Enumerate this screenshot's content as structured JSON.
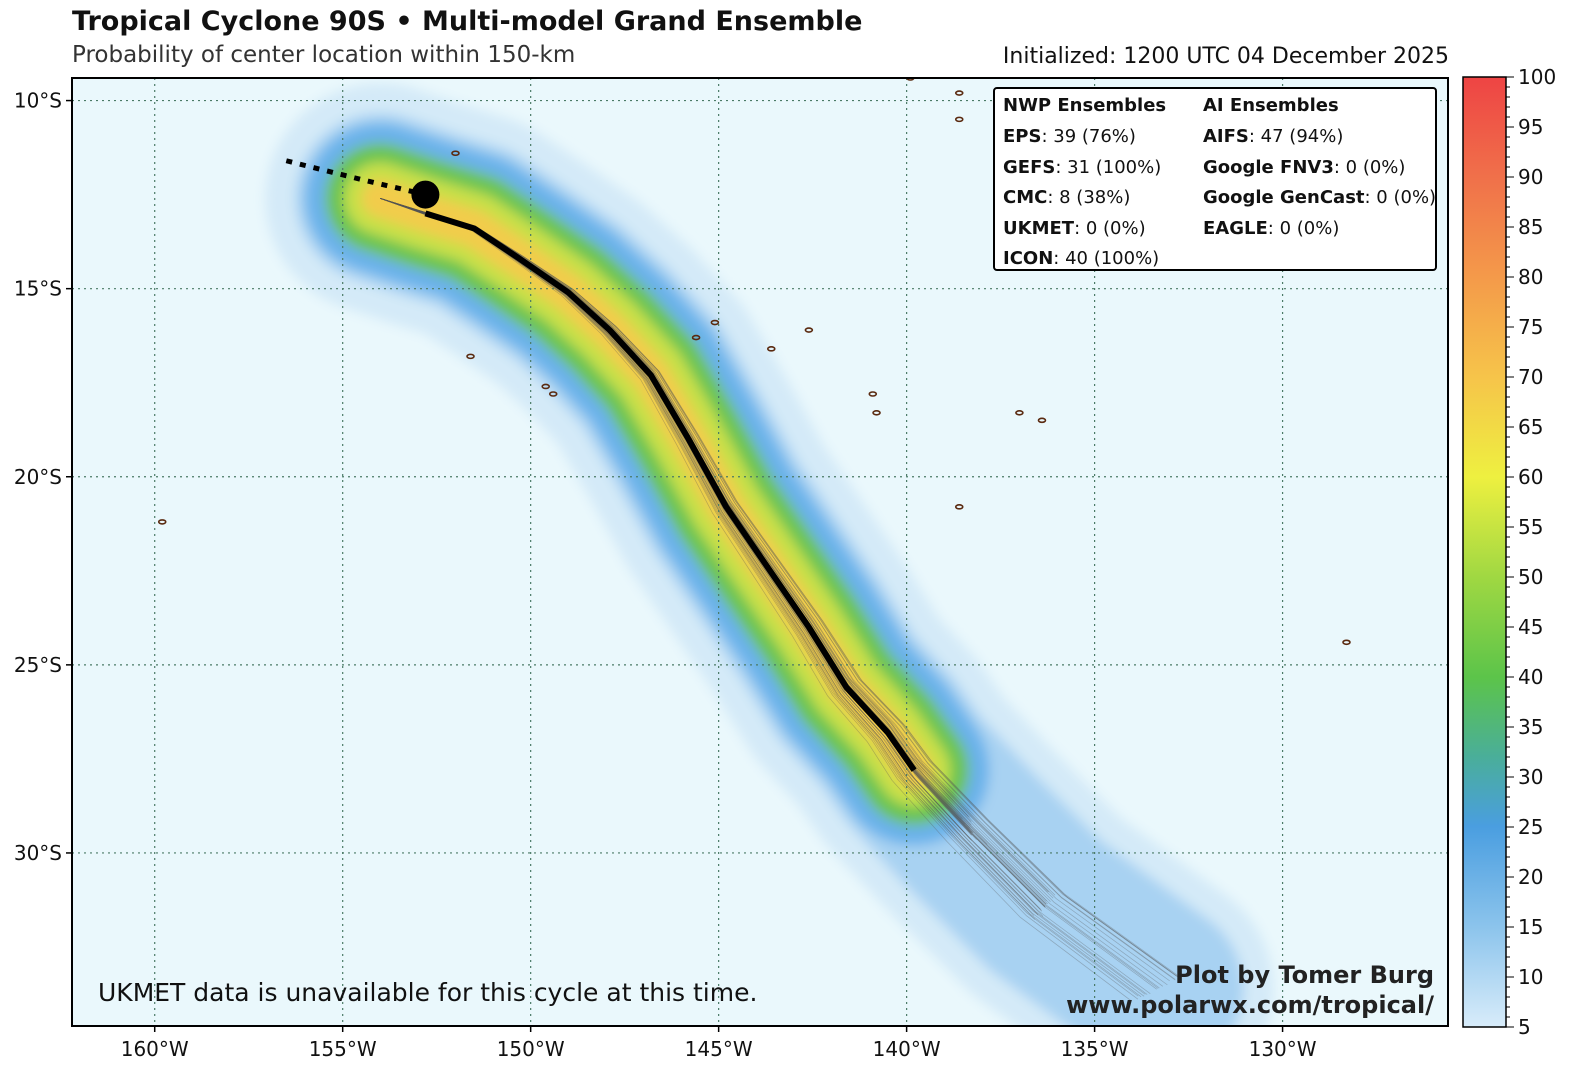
{
  "header": {
    "title": "Tropical Cyclone 90S • Multi-model Grand Ensemble",
    "subtitle": "Probability of center location within 150-km",
    "initialized": "Initialized: 1200 UTC 04 December 2025"
  },
  "legend": {
    "nwp_title": "NWP Ensembles",
    "ai_title": "AI Ensembles",
    "nwp": [
      {
        "model": "EPS",
        "value": ": 39 (76%)"
      },
      {
        "model": "GEFS",
        "value": ": 31 (100%)"
      },
      {
        "model": "CMC",
        "value": ": 8 (38%)"
      },
      {
        "model": "UKMET",
        "value": ": 0 (0%)"
      },
      {
        "model": "ICON",
        "value": ": 40 (100%)"
      }
    ],
    "ai": [
      {
        "model": "AIFS",
        "value": ": 47 (94%)"
      },
      {
        "model": "Google FNV3",
        "value": ": 0 (0%)"
      },
      {
        "model": "Google GenCast",
        "value": ": 0 (0%)"
      },
      {
        "model": "EAGLE",
        "value": ": 0 (0%)"
      }
    ]
  },
  "note": "UKMET data is unavailable for this cycle at this time.",
  "credit": {
    "line1": "Plot by Tomer Burg",
    "line2": "www.polarwx.com/tropical/"
  },
  "map": {
    "lat_labels": [
      "10°S",
      "15°S",
      "20°S",
      "25°S",
      "30°S"
    ],
    "lon_labels": [
      "160°W",
      "155°W",
      "150°W",
      "145°W",
      "140°W",
      "135°W",
      "130°W"
    ],
    "lat_range": [
      -34.6,
      -9.4
    ],
    "lon_range": [
      -162.2,
      -125.6
    ],
    "lat_ticks": [
      -10,
      -15,
      -20,
      -25,
      -30
    ],
    "lon_ticks": [
      -160,
      -155,
      -150,
      -145,
      -140,
      -135,
      -130
    ],
    "ocean_color": "#eaf8fc",
    "gridline_color": "#4a7a66",
    "coast_color": "#5a2a10",
    "current_position": {
      "lon": -152.8,
      "lat": -12.5
    },
    "past_track": [
      {
        "lon": -156.5,
        "lat": -11.6
      },
      {
        "lon": -154.5,
        "lat": -12.1
      },
      {
        "lon": -152.8,
        "lat": -12.5
      }
    ],
    "mean_track": [
      {
        "lon": -152.8,
        "lat": -13.0
      },
      {
        "lon": -151.5,
        "lat": -13.4
      },
      {
        "lon": -150.3,
        "lat": -14.2
      },
      {
        "lon": -149.0,
        "lat": -15.1
      },
      {
        "lon": -147.9,
        "lat": -16.1
      },
      {
        "lon": -146.8,
        "lat": -17.3
      },
      {
        "lon": -145.8,
        "lat": -19.0
      },
      {
        "lon": -144.8,
        "lat": -20.8
      },
      {
        "lon": -143.7,
        "lat": -22.4
      },
      {
        "lon": -142.6,
        "lat": -24.0
      },
      {
        "lon": -141.6,
        "lat": -25.6
      },
      {
        "lon": -140.5,
        "lat": -26.8
      },
      {
        "lon": -139.8,
        "lat": -27.8
      }
    ],
    "islands": [
      {
        "lon": -151.6,
        "lat": -16.8
      },
      {
        "lon": -149.6,
        "lat": -17.6
      },
      {
        "lon": -149.4,
        "lat": -17.8
      },
      {
        "lon": -145.6,
        "lat": -16.3
      },
      {
        "lon": -145.1,
        "lat": -15.9
      },
      {
        "lon": -143.6,
        "lat": -16.6
      },
      {
        "lon": -142.6,
        "lat": -16.1
      },
      {
        "lon": -140.9,
        "lat": -17.8
      },
      {
        "lon": -140.8,
        "lat": -18.3
      },
      {
        "lon": -138.6,
        "lat": -9.8
      },
      {
        "lon": -138.6,
        "lat": -10.5
      },
      {
        "lon": -139.9,
        "lat": -9.4
      },
      {
        "lon": -137.0,
        "lat": -18.3
      },
      {
        "lon": -136.4,
        "lat": -18.5
      },
      {
        "lon": -138.6,
        "lat": -20.8
      },
      {
        "lon": -159.8,
        "lat": -21.2
      },
      {
        "lon": -128.3,
        "lat": -24.4
      },
      {
        "lon": -152.0,
        "lat": -11.4
      }
    ]
  },
  "colorbar": {
    "labels": [
      "100",
      "95",
      "90",
      "85",
      "80",
      "75",
      "70",
      "65",
      "60",
      "55",
      "50",
      "45",
      "40",
      "35",
      "30",
      "25",
      "20",
      "15",
      "10",
      "5"
    ],
    "range": [
      5,
      100
    ],
    "stops": [
      {
        "value": 5,
        "color": "#d8ecfa"
      },
      {
        "value": 15,
        "color": "#8cc4ec"
      },
      {
        "value": 25,
        "color": "#4a9ee0"
      },
      {
        "value": 32,
        "color": "#4aae9a"
      },
      {
        "value": 40,
        "color": "#5cc44a"
      },
      {
        "value": 50,
        "color": "#a0d842"
      },
      {
        "value": 60,
        "color": "#eef040"
      },
      {
        "value": 70,
        "color": "#f6c44a"
      },
      {
        "value": 80,
        "color": "#f49a4a"
      },
      {
        "value": 90,
        "color": "#f0704a"
      },
      {
        "value": 100,
        "color": "#ee4444"
      }
    ]
  }
}
